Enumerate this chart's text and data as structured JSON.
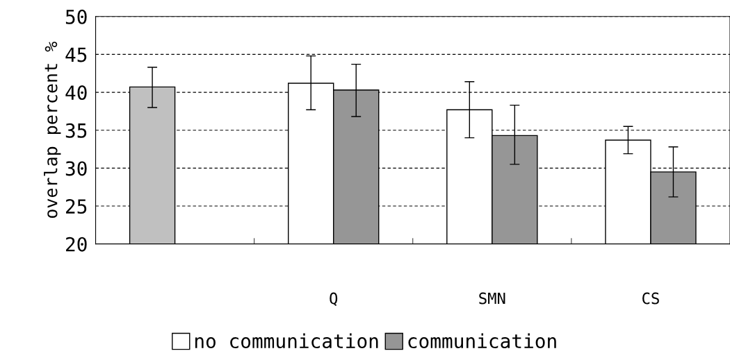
{
  "chart_data": {
    "type": "bar",
    "ylabel": "overlap percent %",
    "categories": [
      null,
      "Q",
      "SMN",
      "CS"
    ],
    "series": [
      {
        "name": "no communication",
        "color": "#ffffff",
        "colors": [
          "#c0c0c0",
          "#ffffff",
          "#ffffff",
          "#ffffff"
        ],
        "values": [
          40.7,
          41.2,
          37.7,
          33.7
        ],
        "errors": [
          [
            38.0,
            43.3
          ],
          [
            37.7,
            44.8
          ],
          [
            34.0,
            41.4
          ],
          [
            31.9,
            35.5
          ]
        ]
      },
      {
        "name": "communication",
        "color": "#969696",
        "values": [
          null,
          40.3,
          34.3,
          29.5
        ],
        "errors": [
          null,
          [
            36.8,
            43.7
          ],
          [
            30.5,
            38.3
          ],
          [
            26.2,
            32.8
          ]
        ]
      }
    ],
    "ylim": [
      20,
      50
    ],
    "yticks": [
      20,
      25,
      30,
      35,
      40,
      45,
      50
    ],
    "grid": "y",
    "legend": "bottom"
  }
}
